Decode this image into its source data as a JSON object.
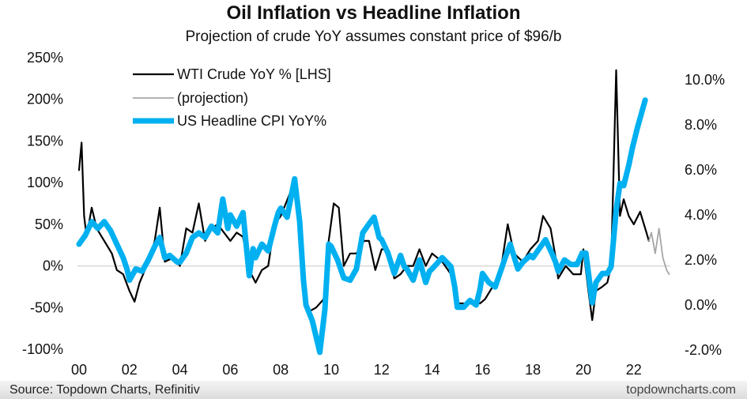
{
  "chart_data": {
    "type": "line",
    "title": "Oil Inflation vs Headline Inflation",
    "subtitle": "Projection of crude YoY assumes constant price of $96/b",
    "x_ticks": [
      "00",
      "02",
      "04",
      "06",
      "08",
      "10",
      "12",
      "14",
      "16",
      "18",
      "20",
      "22"
    ],
    "x_tick_values": [
      2000,
      2002,
      2004,
      2006,
      2008,
      2010,
      2012,
      2014,
      2016,
      2018,
      2020,
      2022
    ],
    "xlim": [
      2000,
      2023.5
    ],
    "y_left": {
      "ticks": [
        "250%",
        "200%",
        "150%",
        "100%",
        "50%",
        "0%",
        "-50%",
        "-100%"
      ],
      "tick_values": [
        250,
        200,
        150,
        100,
        50,
        0,
        -50,
        -100
      ],
      "ylim": [
        -100,
        250
      ]
    },
    "y_right": {
      "ticks": [
        "10.0%",
        "8.0%",
        "6.0%",
        "4.0%",
        "2.0%",
        "0.0%",
        "-2.0%"
      ],
      "tick_values": [
        10,
        8,
        6,
        4,
        2,
        0,
        -2
      ],
      "ylim": [
        -2,
        10.98
      ]
    },
    "zero_line": true,
    "legend_placement": "top-left",
    "series": [
      {
        "name": "WTI Crude YoY % [LHS]",
        "axis": "left",
        "color": "#000000",
        "x": [
          2000.0,
          2000.1,
          2000.2,
          2000.3,
          2000.5,
          2000.7,
          2000.9,
          2001.0,
          2001.3,
          2001.5,
          2001.75,
          2002.0,
          2002.2,
          2002.4,
          2002.75,
          2003.0,
          2003.2,
          2003.4,
          2003.75,
          2004.0,
          2004.25,
          2004.5,
          2004.75,
          2005.0,
          2005.25,
          2005.5,
          2005.75,
          2006.0,
          2006.25,
          2006.5,
          2006.75,
          2007.0,
          2007.25,
          2007.5,
          2007.75,
          2008.0,
          2008.4,
          2008.55,
          2008.75,
          2008.95,
          2009.1,
          2009.4,
          2009.7,
          2009.9,
          2010.1,
          2010.3,
          2010.5,
          2010.75,
          2011.0,
          2011.3,
          2011.5,
          2011.75,
          2012.0,
          2012.25,
          2012.5,
          2012.75,
          2013.0,
          2013.25,
          2013.5,
          2013.75,
          2014.0,
          2014.4,
          2014.75,
          2015.0,
          2015.5,
          2015.9,
          2016.1,
          2016.5,
          2016.75,
          2017.0,
          2017.25,
          2017.6,
          2017.9,
          2018.2,
          2018.4,
          2018.7,
          2018.9,
          2019.0,
          2019.3,
          2019.6,
          2019.9,
          2020.0,
          2020.2,
          2020.35,
          2020.5,
          2020.75,
          2020.95,
          2021.1,
          2021.3,
          2021.45,
          2021.6,
          2021.8,
          2022.0,
          2022.25,
          2022.5,
          2022.6
        ],
        "values": [
          115,
          148,
          60,
          35,
          70,
          45,
          35,
          30,
          15,
          -5,
          -10,
          -30,
          -43,
          -20,
          5,
          30,
          70,
          5,
          10,
          0,
          45,
          40,
          75,
          30,
          45,
          50,
          40,
          30,
          40,
          35,
          -5,
          -20,
          -5,
          0,
          50,
          60,
          90,
          100,
          40,
          -30,
          -55,
          -50,
          -40,
          30,
          75,
          70,
          0,
          15,
          15,
          30,
          30,
          -5,
          20,
          20,
          -15,
          -10,
          0,
          0,
          20,
          0,
          15,
          5,
          -10,
          -45,
          -45,
          -45,
          -40,
          -20,
          0,
          50,
          15,
          5,
          20,
          30,
          60,
          45,
          10,
          -15,
          0,
          -10,
          -10,
          20,
          -30,
          -65,
          -30,
          -25,
          -20,
          0,
          235,
          60,
          80,
          60,
          50,
          65,
          40,
          30
        ]
      },
      {
        "name": "(projection)",
        "axis": "left",
        "color": "#a6a6a6",
        "x": [
          2022.6,
          2022.7,
          2022.85,
          2023.0,
          2023.15,
          2023.3,
          2023.4
        ],
        "values": [
          30,
          40,
          15,
          45,
          10,
          -5,
          -10
        ]
      },
      {
        "name": "US Headline CPI YoY%",
        "axis": "right",
        "color": "#00b0f0",
        "x": [
          2000.0,
          2000.25,
          2000.5,
          2000.75,
          2001.0,
          2001.25,
          2001.5,
          2001.75,
          2001.9,
          2002.0,
          2002.25,
          2002.5,
          2002.75,
          2003.0,
          2003.2,
          2003.4,
          2003.6,
          2003.9,
          2004.0,
          2004.25,
          2004.5,
          2004.75,
          2005.0,
          2005.25,
          2005.5,
          2005.7,
          2005.9,
          2006.0,
          2006.25,
          2006.5,
          2006.75,
          2006.9,
          2007.0,
          2007.25,
          2007.5,
          2007.75,
          2007.9,
          2008.0,
          2008.25,
          2008.55,
          2008.75,
          2008.9,
          2009.0,
          2009.25,
          2009.55,
          2009.75,
          2009.9,
          2010.0,
          2010.25,
          2010.5,
          2010.75,
          2011.0,
          2011.25,
          2011.5,
          2011.7,
          2011.9,
          2012.0,
          2012.25,
          2012.5,
          2012.75,
          2012.9,
          2013.0,
          2013.25,
          2013.5,
          2013.75,
          2013.9,
          2014.0,
          2014.4,
          2014.75,
          2014.9,
          2015.0,
          2015.25,
          2015.5,
          2015.75,
          2015.9,
          2016.0,
          2016.25,
          2016.5,
          2016.75,
          2016.9,
          2017.1,
          2017.4,
          2017.6,
          2017.9,
          2018.0,
          2018.5,
          2018.75,
          2018.9,
          2019.0,
          2019.25,
          2019.5,
          2019.75,
          2019.95,
          2020.1,
          2020.35,
          2020.5,
          2020.75,
          2020.95,
          2021.1,
          2021.3,
          2021.45,
          2021.6,
          2021.8,
          2021.95,
          2022.15,
          2022.3,
          2022.45
        ],
        "values": [
          2.7,
          3.1,
          3.7,
          3.4,
          3.7,
          3.3,
          2.7,
          2.1,
          1.6,
          1.1,
          1.6,
          1.5,
          2.0,
          2.6,
          3.0,
          2.1,
          2.2,
          1.9,
          1.9,
          2.3,
          3.0,
          3.2,
          3.0,
          3.5,
          3.2,
          4.7,
          3.4,
          4.0,
          3.5,
          4.1,
          1.3,
          2.5,
          2.1,
          2.7,
          2.4,
          3.5,
          4.1,
          4.3,
          3.9,
          5.6,
          3.7,
          1.1,
          0.0,
          -0.7,
          -2.1,
          -0.2,
          2.7,
          2.6,
          2.0,
          1.2,
          1.1,
          1.6,
          3.2,
          3.6,
          3.9,
          3.0,
          2.9,
          2.3,
          1.4,
          2.2,
          1.7,
          1.6,
          1.1,
          2.0,
          1.0,
          1.5,
          1.6,
          2.1,
          1.7,
          0.8,
          -0.1,
          -0.1,
          0.2,
          0.0,
          0.7,
          1.4,
          1.0,
          0.8,
          1.6,
          2.1,
          2.7,
          1.6,
          1.9,
          2.2,
          2.1,
          2.9,
          2.3,
          1.9,
          1.5,
          2.0,
          1.8,
          1.8,
          2.3,
          2.3,
          0.1,
          1.0,
          1.4,
          1.4,
          1.7,
          4.2,
          5.4,
          5.3,
          6.2,
          7.0,
          7.9,
          8.5,
          9.1
        ]
      }
    ]
  },
  "footer": {
    "source": "Source: Topdown Charts, Refinitiv",
    "brand": "topdowncharts.com"
  }
}
